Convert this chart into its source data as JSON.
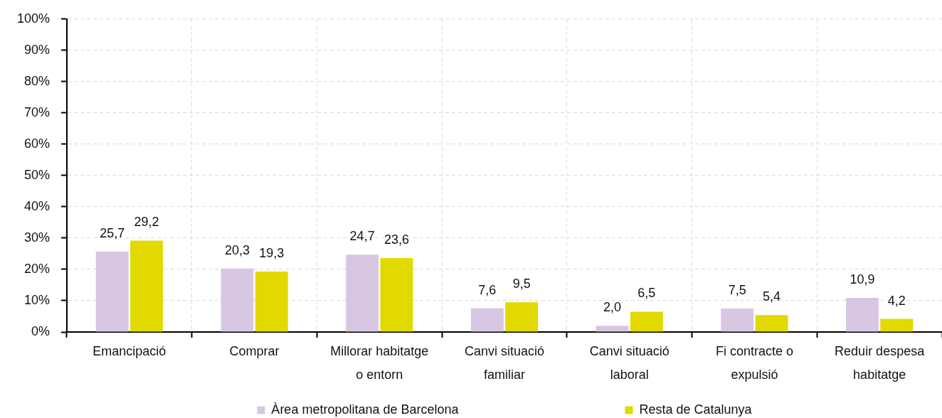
{
  "chart_data": {
    "type": "bar",
    "categories": [
      "Emancipació",
      "Comprar",
      "Millorar habitatge o entorn",
      "Canvi situació familiar",
      "Canvi situació laboral",
      "Fi contracte o expulsió",
      "Reduir despesa habitatge"
    ],
    "series": [
      {
        "name": "Àrea metropolitana de Barcelona",
        "color": "#d8c7e2",
        "values": [
          25.7,
          20.3,
          24.7,
          7.6,
          2.0,
          7.5,
          10.9
        ],
        "value_labels": [
          "25,7",
          "20,3",
          "24,7",
          "7,6",
          "2,0",
          "7,5",
          "10,9"
        ]
      },
      {
        "name": "Resta de Catalunya",
        "color": "#e2d900",
        "values": [
          29.2,
          19.3,
          23.6,
          9.5,
          6.5,
          5.4,
          4.2
        ],
        "value_labels": [
          "29,2",
          "19,3",
          "23,6",
          "9,5",
          "6,5",
          "5,4",
          "4,2"
        ]
      }
    ],
    "ylim": [
      0,
      100
    ],
    "yticks": [
      {
        "value": 0,
        "label": "0%"
      },
      {
        "value": 10,
        "label": "10%"
      },
      {
        "value": 20,
        "label": "20%"
      },
      {
        "value": 30,
        "label": "30%"
      },
      {
        "value": 40,
        "label": "40%"
      },
      {
        "value": 50,
        "label": "50%"
      },
      {
        "value": 60,
        "label": "60%"
      },
      {
        "value": 70,
        "label": "70%"
      },
      {
        "value": 80,
        "label": "80%"
      },
      {
        "value": 90,
        "label": "90%"
      },
      {
        "value": 100,
        "label": "100%"
      }
    ],
    "grid": true,
    "legend": "bottom"
  }
}
